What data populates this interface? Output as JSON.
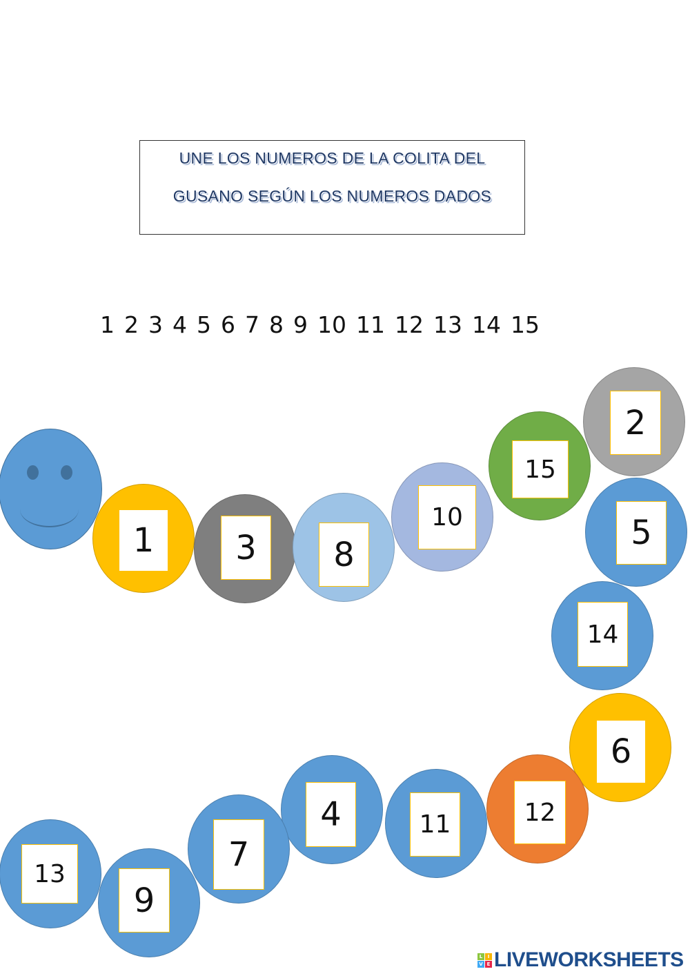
{
  "title": {
    "line1": "UNE LOS NUMEROS DE LA COLITA DEL",
    "line2": "GUSANO SEGÚN LOS NUMEROS DADOS"
  },
  "number_sequence": [
    "1",
    "2",
    "3",
    "4",
    "5",
    "6",
    "7",
    "8",
    "9",
    "10",
    "11",
    "12",
    "13",
    "14",
    "15"
  ],
  "worm": {
    "head_color": "#5b9bd5",
    "segments": [
      {
        "label": "1",
        "color": "#ffc000"
      },
      {
        "label": "3",
        "color": "#7f7f7f"
      },
      {
        "label": "8",
        "color": "#9dc3e6"
      },
      {
        "label": "10",
        "color": "#a4b8e0"
      },
      {
        "label": "15",
        "color": "#70ad47"
      },
      {
        "label": "2",
        "color": "#a5a5a5"
      },
      {
        "label": "5",
        "color": "#5b9bd5"
      },
      {
        "label": "14",
        "color": "#5b9bd5"
      },
      {
        "label": "6",
        "color": "#ffc000"
      },
      {
        "label": "12",
        "color": "#ed7d31"
      },
      {
        "label": "11",
        "color": "#5b9bd5"
      },
      {
        "label": "4",
        "color": "#5b9bd5"
      },
      {
        "label": "7",
        "color": "#5b9bd5"
      },
      {
        "label": "9",
        "color": "#5b9bd5"
      },
      {
        "label": "13",
        "color": "#5b9bd5"
      }
    ]
  },
  "logo": {
    "text": "LIVEWORKSHEETS",
    "tiles": [
      "L",
      "I",
      "V",
      "E"
    ]
  }
}
